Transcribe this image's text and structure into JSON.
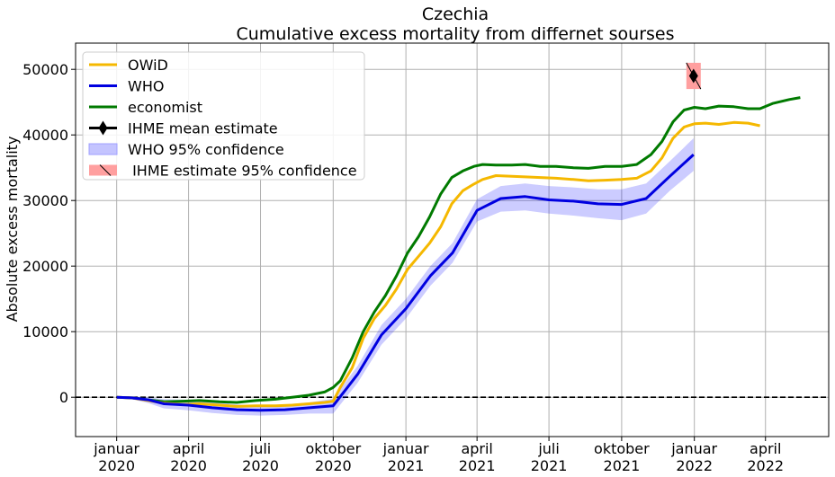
{
  "chart_data": {
    "type": "line",
    "title": "Czechia",
    "subtitle": "Cumulative excess mortality from differnet sourses",
    "xlabel": "",
    "ylabel": "Absolute excess mortality",
    "xlim": [
      "2019-11-10",
      "2022-06-20"
    ],
    "ylim": [
      -6000,
      54000
    ],
    "yticks": [
      0,
      10000,
      20000,
      30000,
      40000,
      50000
    ],
    "ytick_labels": [
      "0",
      "10000",
      "20000",
      "30000",
      "40000",
      "50000"
    ],
    "xticks": [
      {
        "date": "2020-01-01",
        "line1": "januar",
        "line2": "2020"
      },
      {
        "date": "2020-04-01",
        "line1": "april",
        "line2": "2020"
      },
      {
        "date": "2020-07-01",
        "line1": "juli",
        "line2": "2020"
      },
      {
        "date": "2020-10-01",
        "line1": "oktober",
        "line2": "2020"
      },
      {
        "date": "2021-01-01",
        "line1": "januar",
        "line2": "2021"
      },
      {
        "date": "2021-04-01",
        "line1": "april",
        "line2": "2021"
      },
      {
        "date": "2021-07-01",
        "line1": "juli",
        "line2": "2021"
      },
      {
        "date": "2021-10-01",
        "line1": "oktober",
        "line2": "2021"
      },
      {
        "date": "2022-01-01",
        "line1": "januar",
        "line2": "2022"
      },
      {
        "date": "2022-04-01",
        "line1": "april",
        "line2": "2022"
      }
    ],
    "grid": true,
    "legend_position": "upper-left",
    "zero_line": {
      "y": 0,
      "style": "dashed",
      "color": "#000000"
    },
    "legend": [
      {
        "label": "OWiD",
        "kind": "line",
        "color": "#f5b800"
      },
      {
        "label": "WHO",
        "kind": "line",
        "color": "#0000e0"
      },
      {
        "label": "economist",
        "kind": "line",
        "color": "#007a00"
      },
      {
        "label": "IHME mean estimate",
        "kind": "marker",
        "color": "#000000"
      },
      {
        "label": "WHO 95% confidence",
        "kind": "band",
        "color": "#c4c4ff"
      },
      {
        "label": " IHME estimate 95% confidence",
        "kind": "band",
        "color": "#ff9f9f"
      }
    ],
    "series": [
      {
        "name": "economist",
        "color": "#007a00",
        "x": [
          "2020-01-01",
          "2020-01-20",
          "2020-02-10",
          "2020-03-01",
          "2020-03-25",
          "2020-04-15",
          "2020-05-10",
          "2020-06-01",
          "2020-06-25",
          "2020-07-20",
          "2020-08-10",
          "2020-08-31",
          "2020-09-20",
          "2020-10-01",
          "2020-10-10",
          "2020-10-25",
          "2020-11-08",
          "2020-11-22",
          "2020-12-06",
          "2020-12-20",
          "2021-01-03",
          "2021-01-17",
          "2021-01-31",
          "2021-02-14",
          "2021-02-28",
          "2021-03-14",
          "2021-03-28",
          "2021-04-08",
          "2021-04-25",
          "2021-05-15",
          "2021-06-01",
          "2021-06-20",
          "2021-07-10",
          "2021-08-01",
          "2021-08-20",
          "2021-09-10",
          "2021-10-01",
          "2021-10-20",
          "2021-11-07",
          "2021-11-21",
          "2021-12-05",
          "2021-12-19",
          "2022-01-01",
          "2022-01-15",
          "2022-02-01",
          "2022-02-20",
          "2022-03-10",
          "2022-03-25",
          "2022-04-10",
          "2022-05-01",
          "2022-05-15"
        ],
        "y": [
          0,
          -100,
          -400,
          -700,
          -600,
          -500,
          -700,
          -800,
          -500,
          -300,
          0,
          300,
          800,
          1500,
          2500,
          6000,
          10000,
          13000,
          15500,
          18500,
          22000,
          24500,
          27500,
          31000,
          33500,
          34500,
          35200,
          35500,
          35400,
          35400,
          35500,
          35200,
          35200,
          35000,
          34900,
          35200,
          35200,
          35500,
          37000,
          39000,
          42000,
          43800,
          44200,
          44000,
          44400,
          44300,
          44000,
          44000,
          44800,
          45400,
          45700
        ]
      },
      {
        "name": "OWiD",
        "color": "#f5b800",
        "x": [
          "2020-01-01",
          "2020-01-20",
          "2020-02-10",
          "2020-03-01",
          "2020-03-25",
          "2020-04-15",
          "2020-05-10",
          "2020-06-01",
          "2020-06-25",
          "2020-07-20",
          "2020-08-10",
          "2020-08-31",
          "2020-09-20",
          "2020-10-01",
          "2020-10-10",
          "2020-10-25",
          "2020-11-08",
          "2020-11-22",
          "2020-12-06",
          "2020-12-20",
          "2021-01-03",
          "2021-01-17",
          "2021-01-31",
          "2021-02-14",
          "2021-02-28",
          "2021-03-14",
          "2021-03-28",
          "2021-04-08",
          "2021-04-25",
          "2021-05-15",
          "2021-06-01",
          "2021-06-20",
          "2021-07-10",
          "2021-08-01",
          "2021-08-20",
          "2021-09-10",
          "2021-10-01",
          "2021-10-20",
          "2021-11-07",
          "2021-11-21",
          "2021-12-05",
          "2021-12-19",
          "2022-01-01",
          "2022-01-15",
          "2022-02-01",
          "2022-02-20",
          "2022-03-10",
          "2022-03-25"
        ],
        "y": [
          0,
          -100,
          -500,
          -900,
          -1100,
          -1000,
          -1200,
          -1400,
          -1300,
          -1300,
          -1200,
          -1000,
          -800,
          -600,
          1500,
          4500,
          9000,
          12000,
          14000,
          16500,
          19500,
          21500,
          23500,
          26000,
          29500,
          31500,
          32500,
          33200,
          33800,
          33700,
          33600,
          33500,
          33400,
          33200,
          33000,
          33100,
          33200,
          33400,
          34500,
          36500,
          39500,
          41200,
          41700,
          41800,
          41600,
          41900,
          41800,
          41400
        ],
        "band": null
      },
      {
        "name": "WHO",
        "color": "#0000e0",
        "x": [
          "2020-01-01",
          "2020-01-20",
          "2020-02-10",
          "2020-03-01",
          "2020-04-01",
          "2020-05-01",
          "2020-06-01",
          "2020-07-01",
          "2020-08-01",
          "2020-09-01",
          "2020-10-01",
          "2020-11-01",
          "2020-12-01",
          "2021-01-01",
          "2021-02-01",
          "2021-03-01",
          "2021-04-01",
          "2021-05-01",
          "2021-06-01",
          "2021-07-01",
          "2021-08-01",
          "2021-09-01",
          "2021-10-01",
          "2021-11-01",
          "2021-12-01",
          "2021-12-31"
        ],
        "y": [
          0,
          -100,
          -400,
          -1000,
          -1200,
          -1600,
          -1900,
          -2000,
          -1900,
          -1600,
          -1300,
          3500,
          9500,
          13500,
          18500,
          22000,
          28500,
          30300,
          30600,
          30100,
          29900,
          29500,
          29400,
          30300,
          33700,
          37000
        ],
        "lower": [
          0,
          -300,
          -900,
          -1700,
          -2000,
          -2400,
          -2700,
          -2800,
          -2700,
          -2500,
          -2500,
          2200,
          8000,
          12000,
          17000,
          20500,
          26800,
          28300,
          28500,
          28000,
          27700,
          27300,
          27000,
          28000,
          31500,
          34500
        ],
        "upper": [
          0,
          100,
          0,
          -300,
          -400,
          -800,
          -1100,
          -1200,
          -1100,
          -800,
          -200,
          4800,
          11000,
          15000,
          20000,
          23500,
          30200,
          32200,
          32600,
          32200,
          32000,
          31700,
          31700,
          32600,
          36000,
          39500
        ]
      }
    ],
    "ihme": {
      "date": "2021-12-31",
      "mean": 49000,
      "lower": 47000,
      "upper": 51000,
      "color": "#ff9f9f"
    }
  }
}
